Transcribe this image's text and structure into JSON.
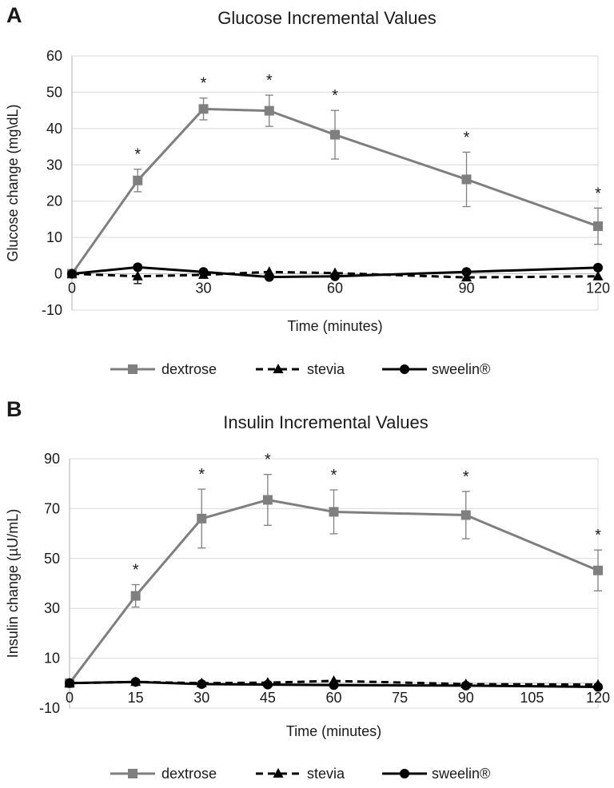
{
  "chart_data": [
    {
      "type": "line",
      "panel_label": "A",
      "title": "Glucose Incremental Values",
      "xlabel": "Time (minutes)",
      "ylabel": "Glucose change (mg\\dL)",
      "xlim": [
        0,
        120
      ],
      "ylim": [
        -10,
        60
      ],
      "x_ticks": [
        0,
        30,
        60,
        90,
        120
      ],
      "y_ticks": [
        -10,
        0,
        10,
        20,
        30,
        40,
        50,
        60
      ],
      "grid": "horizontal",
      "legend_position": "bottom",
      "series": [
        {
          "name": "dextrose",
          "color": "#7f7f7f",
          "line": "solid",
          "marker": "square",
          "x": [
            0,
            15,
            30,
            45,
            60,
            90,
            120
          ],
          "y": [
            0,
            25.7,
            45.4,
            44.9,
            38.3,
            26.0,
            13.1
          ],
          "error": [
            0,
            3.1,
            3.0,
            4.3,
            6.7,
            7.5,
            5.0
          ]
        },
        {
          "name": "stevia",
          "color": "#000000",
          "line": "dashed",
          "marker": "triangle",
          "x": [
            0,
            15,
            30,
            45,
            60,
            90,
            120
          ],
          "y": [
            0,
            -0.7,
            -0.3,
            0.5,
            0.2,
            -1.0,
            -0.7
          ],
          "error": [
            0,
            2.0,
            0,
            0,
            0,
            0,
            0
          ]
        },
        {
          "name": "sweelin®",
          "color": "#000000",
          "line": "solid",
          "marker": "circle",
          "x": [
            0,
            15,
            30,
            45,
            60,
            90,
            120
          ],
          "y": [
            0,
            1.8,
            0.5,
            -0.9,
            -0.7,
            0.5,
            1.7
          ],
          "error": [
            0,
            0,
            0,
            0,
            0,
            0,
            0
          ]
        }
      ],
      "annotations": [
        {
          "x": 15,
          "text": "*"
        },
        {
          "x": 30,
          "text": "*"
        },
        {
          "x": 45,
          "text": "*"
        },
        {
          "x": 60,
          "text": "*"
        },
        {
          "x": 90,
          "text": "*"
        },
        {
          "x": 120,
          "text": "*"
        }
      ]
    },
    {
      "type": "line",
      "panel_label": "B",
      "title": "Insulin Incremental Values",
      "xlabel": "Time (minutes)",
      "ylabel": "Insulin change (µU/mL)",
      "xlim": [
        0,
        120
      ],
      "ylim": [
        -10,
        90
      ],
      "x_ticks": [
        0,
        15,
        30,
        45,
        60,
        75,
        90,
        105,
        120
      ],
      "y_ticks": [
        -10,
        10,
        30,
        50,
        70,
        90
      ],
      "grid": "horizontal",
      "legend_position": "bottom",
      "series": [
        {
          "name": "dextrose",
          "color": "#7f7f7f",
          "line": "solid",
          "marker": "square",
          "x": [
            0,
            15,
            30,
            45,
            60,
            90,
            120
          ],
          "y": [
            0,
            35,
            66,
            73.5,
            68.7,
            67.4,
            45.2
          ],
          "error": [
            0,
            4.5,
            11.8,
            10.2,
            8.8,
            9.5,
            8.2
          ]
        },
        {
          "name": "stevia",
          "color": "#000000",
          "line": "dashed",
          "marker": "triangle",
          "x": [
            0,
            15,
            30,
            45,
            60,
            90,
            120
          ],
          "y": [
            0,
            0.5,
            0,
            0.2,
            0.9,
            -0.4,
            -0.6
          ],
          "error": [
            0,
            0,
            0,
            0,
            0,
            0,
            0
          ]
        },
        {
          "name": "sweelin®",
          "color": "#000000",
          "line": "solid",
          "marker": "circle",
          "x": [
            0,
            15,
            30,
            45,
            60,
            90,
            120
          ],
          "y": [
            0,
            0.5,
            -0.4,
            -0.6,
            -0.8,
            -1.0,
            -1.5
          ],
          "error": [
            0,
            0,
            0,
            0,
            0,
            0,
            0
          ]
        }
      ],
      "annotations": [
        {
          "x": 15,
          "text": "*"
        },
        {
          "x": 30,
          "text": "*"
        },
        {
          "x": 45,
          "text": "*"
        },
        {
          "x": 60,
          "text": "*"
        },
        {
          "x": 90,
          "text": "*"
        },
        {
          "x": 120,
          "text": "*"
        }
      ]
    }
  ]
}
